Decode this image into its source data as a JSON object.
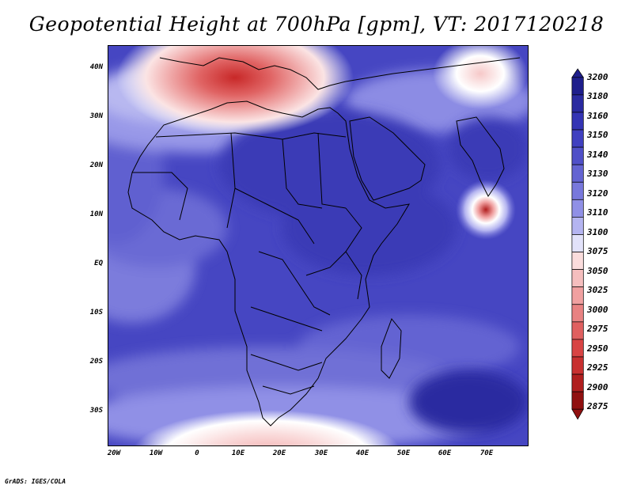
{
  "title": "Geopotential Height at 700hPa [gpm], VT: 2017120218",
  "credit": "GrADS: IGES/COLA",
  "latitude_labels": [
    "40N",
    "30N",
    "20N",
    "10N",
    "EQ",
    "10S",
    "20S",
    "30S"
  ],
  "longitude_labels": [
    "20W",
    "10W",
    "0",
    "10E",
    "20E",
    "30E",
    "40E",
    "50E",
    "60E",
    "70E"
  ],
  "colorbar": {
    "levels": [
      "3200",
      "3180",
      "3160",
      "3150",
      "3140",
      "3130",
      "3120",
      "3110",
      "3100",
      "3075",
      "3050",
      "3025",
      "3000",
      "2975",
      "2950",
      "2925",
      "2900",
      "2875"
    ],
    "colors": [
      "#1e1e8c",
      "#2a2aa0",
      "#3434b4",
      "#4040c0",
      "#5050c8",
      "#6464d2",
      "#7878dc",
      "#9090e6",
      "#b4b4f0",
      "#e2e2fa",
      "#fadcdc",
      "#f5bebe",
      "#f0a0a0",
      "#e88282",
      "#e06060",
      "#d84444",
      "#c83030",
      "#b01e1e",
      "#901010"
    ]
  }
}
